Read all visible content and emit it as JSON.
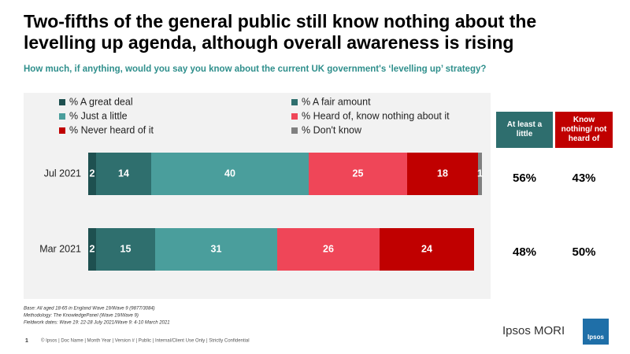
{
  "chart_data": {
    "type": "stacked-bar-horizontal",
    "title": "Two-fifths of the general public still know nothing about the levelling up agenda, although overall awareness is rising",
    "subtitle": "How much, if anything, would you say you know about the current UK government's ‘levelling up’ strategy?",
    "categories": [
      "Jul 2021",
      "Mar 2021"
    ],
    "xlim": [
      0,
      100
    ],
    "series": [
      {
        "name": "% A great deal",
        "color": "#1e5050",
        "values": [
          2,
          2
        ]
      },
      {
        "name": "% A fair amount",
        "color": "#2f6f6e",
        "values": [
          14,
          15
        ]
      },
      {
        "name": "% Just a little",
        "color": "#4a9e9c",
        "values": [
          40,
          31
        ]
      },
      {
        "name": "% Heard of, know nothing about it",
        "color": "#ef4658",
        "values": [
          25,
          26
        ]
      },
      {
        "name": "% Never heard of it",
        "color": "#c00000",
        "values": [
          18,
          24
        ]
      },
      {
        "name": "% Don't know",
        "color": "#808080",
        "values": [
          1,
          null
        ]
      }
    ],
    "summary": [
      {
        "name": "At least a little",
        "color": "#2e6e6e",
        "values": [
          56,
          48
        ],
        "value_labels": [
          "56%",
          "48%"
        ]
      },
      {
        "name": "Know nothing/ not heard of",
        "color": "#c00000",
        "values": [
          43,
          50
        ],
        "value_labels": [
          "43%",
          "50%"
        ]
      }
    ]
  },
  "notes": [
    "Base: All aged 18-65 in England Wave 19/Wave 9 (9877/3084)",
    "Methodology: The KnowledgePanel (Wave 19/Wave 9)",
    "Fieldwork dates: Wave 19: 22-28 July 2021/Wave 9: 4-10 March 2021"
  ],
  "page_number": "1",
  "footer": "© Ipsos | Doc Name | Month Year | Version # | Public | Internal/Client Use Only | Strictly Confidential",
  "brand": "Ipsos MORI",
  "logo_text": "Ipsos"
}
